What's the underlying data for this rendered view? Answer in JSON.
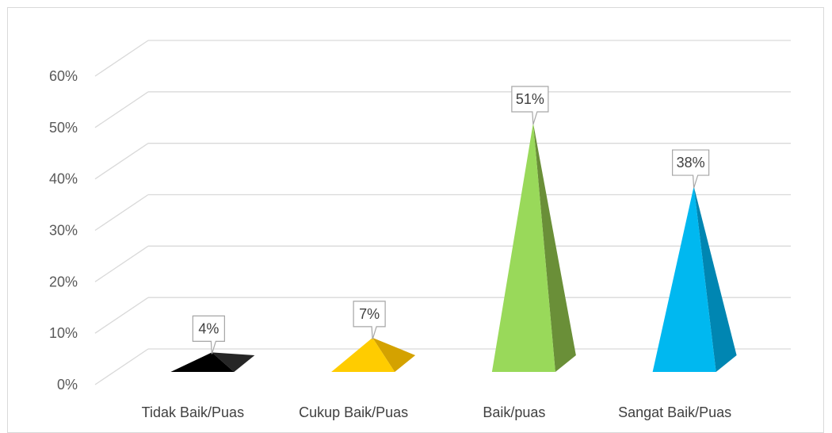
{
  "chart_data": {
    "type": "bar",
    "subtype": "3d-pyramid",
    "title": "",
    "xlabel": "",
    "ylabel": "",
    "categories": [
      "Tidak Baik/Puas",
      "Cukup Baik/Puas",
      "Baik/puas",
      "Sangat Baik/Puas"
    ],
    "values": [
      4,
      7,
      51,
      38
    ],
    "value_unit": "%",
    "data_labels": [
      "4%",
      "7%",
      "51%",
      "38%"
    ],
    "yticks": [
      0,
      10,
      20,
      30,
      40,
      50,
      60
    ],
    "ytick_labels": [
      "0%",
      "10%",
      "20%",
      "30%",
      "40%",
      "50%",
      "60%"
    ],
    "ylim": [
      0,
      60
    ],
    "grid": true,
    "legend": "none",
    "colors": {
      "front": [
        "#000000",
        "#ffcc00",
        "#99d95a",
        "#00b8f0"
      ],
      "side": [
        "#262626",
        "#d4a200",
        "#6a8f38",
        "#0086b2"
      ],
      "grid": "#d9d9d9",
      "frame": "#d9d9d9",
      "label_border": "#a6a6a6"
    }
  }
}
